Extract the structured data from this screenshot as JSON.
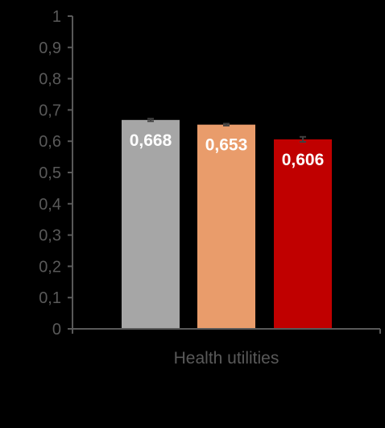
{
  "chart_data": {
    "type": "bar",
    "categories": [
      "Health utilities"
    ],
    "series": [
      {
        "values": [
          0.668
        ],
        "color": "#a6a6a6",
        "label": "0,668",
        "error": 0.004
      },
      {
        "values": [
          0.653
        ],
        "color": "#e99c6b",
        "label": "0,653",
        "error": 0.003
      },
      {
        "values": [
          0.606
        ],
        "color": "#c00000",
        "label": "0,606",
        "error": 0.008
      }
    ],
    "ylim": [
      0,
      1
    ],
    "yticks": [
      0,
      0.1,
      0.2,
      0.3,
      0.4,
      0.5,
      0.6,
      0.7,
      0.8,
      0.9,
      1
    ],
    "ytick_labels": [
      "0",
      "0,1",
      "0,2",
      "0,3",
      "0,4",
      "0,5",
      "0,6",
      "0,7",
      "0,8",
      "0,9",
      "1"
    ],
    "xlabel": "",
    "ylabel": "",
    "title": "",
    "grid": false,
    "legend": "none"
  },
  "colors": {
    "background": "#000000",
    "axis": "#595959",
    "data_label": "#ffffff"
  }
}
